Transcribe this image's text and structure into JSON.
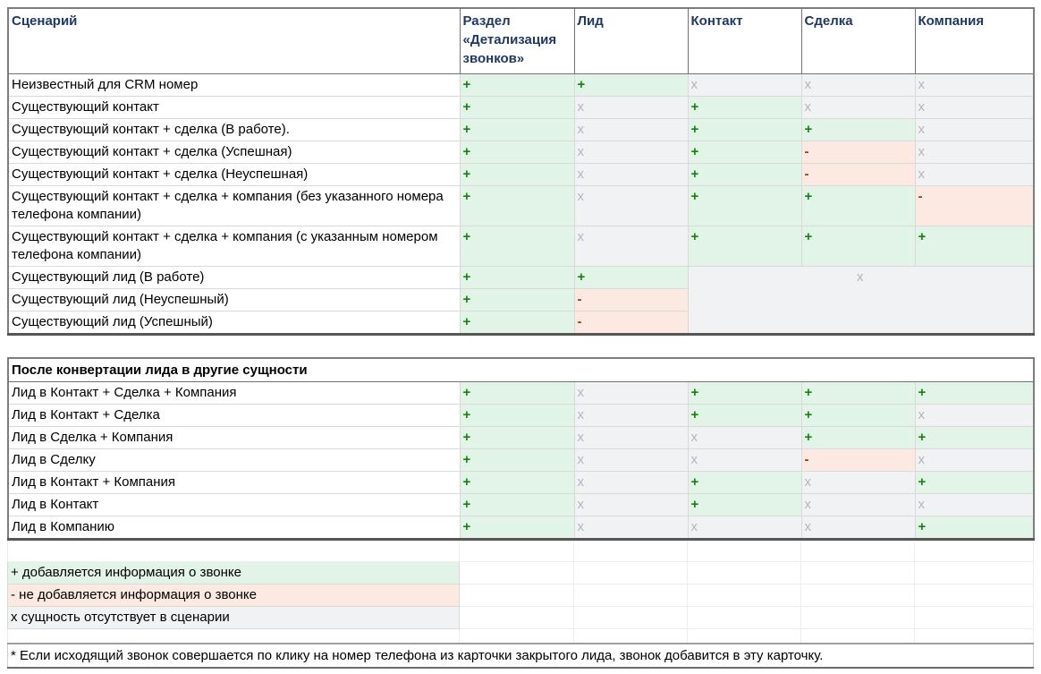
{
  "colors": {
    "added_bg": "#E2F3E7",
    "added_fg": "#15830F",
    "not_added_bg": "#FCE9E1",
    "not_added_fg": "#9E3B00",
    "absent_bg": "#F1F2F4",
    "absent_fg": "#AFB6C0",
    "header_text": "#1F3864",
    "grid_dark": "#737373",
    "grid_light": "#d9d9d9"
  },
  "table1": {
    "headers": [
      "Сценарий",
      "Раздел «Детализация звонков»",
      "Лид",
      "Контакт",
      "Сделка",
      "Компания"
    ],
    "rows": [
      {
        "label": "Неизвестный для CRM номер",
        "cells": [
          "+",
          "+",
          "х",
          "х",
          "х"
        ]
      },
      {
        "label": "Существующий контакт",
        "cells": [
          "+",
          "х",
          "+",
          "х",
          "х"
        ]
      },
      {
        "label": "Существующий контакт + сделка (В работе).",
        "cells": [
          "+",
          "х",
          "+",
          "+",
          "х"
        ]
      },
      {
        "label": "Существующий контакт + сделка (Успешная)",
        "cells": [
          "+",
          "х",
          "+",
          "-",
          "х"
        ]
      },
      {
        "label": "Существующий контакт + сделка (Неуспешная)",
        "cells": [
          "+",
          "х",
          "+",
          "-",
          "х"
        ]
      },
      {
        "label": "Существующий контакт + сделка + компания (без указанного номера телефона компании)",
        "cells": [
          "+",
          "х",
          "+",
          "+",
          "-"
        ]
      },
      {
        "label": "Существующий контакт + сделка + компания (с указанным номером телефона компании)",
        "cells": [
          "+",
          "х",
          "+",
          "+",
          "+"
        ]
      },
      {
        "label": "Существующий лид (В работе)",
        "cells": [
          "+",
          "+"
        ],
        "merged": {
          "symbol": "х",
          "cols": 3,
          "rows": 3
        }
      },
      {
        "label": "Существующий лид (Неуспешный)",
        "cells": [
          "+",
          "-"
        ]
      },
      {
        "label": "Существующий лид (Успешный)",
        "cells": [
          "+",
          "-"
        ]
      }
    ]
  },
  "table2": {
    "section_title": "После конвертации лида в другие сущности",
    "rows": [
      {
        "label": "Лид в Контакт + Сделка + Компания",
        "cells": [
          "+",
          "х",
          "+",
          "+",
          "+"
        ]
      },
      {
        "label": "Лид в Контакт + Сделка",
        "cells": [
          "+",
          "х",
          "+",
          "+",
          "х"
        ]
      },
      {
        "label": "Лид в Сделка + Компания",
        "cells": [
          "+",
          "х",
          "х",
          "+",
          "+"
        ]
      },
      {
        "label": "Лид в Сделку",
        "cells": [
          "+",
          "х",
          "х",
          "-",
          "х"
        ]
      },
      {
        "label": "Лид в Контакт + Компания",
        "cells": [
          "+",
          "х",
          "+",
          "х",
          "+"
        ]
      },
      {
        "label": "Лид в Контакт",
        "cells": [
          "+",
          "х",
          "+",
          "х",
          "х"
        ]
      },
      {
        "label": "Лид в Компанию",
        "cells": [
          "+",
          "х",
          "х",
          "х",
          "+"
        ]
      }
    ]
  },
  "legend": [
    {
      "text": "+ добавляется информация о звонке",
      "style": "green"
    },
    {
      "text": "- не добавляется информация о звонке",
      "style": "pink"
    },
    {
      "text": "х сущность отсутствует в сценарии",
      "style": "gray"
    }
  ],
  "footnote": "* Если исходящий звонок совершается по клику на номер телефона из карточки закрытого лида, звонок добавится в эту карточку."
}
